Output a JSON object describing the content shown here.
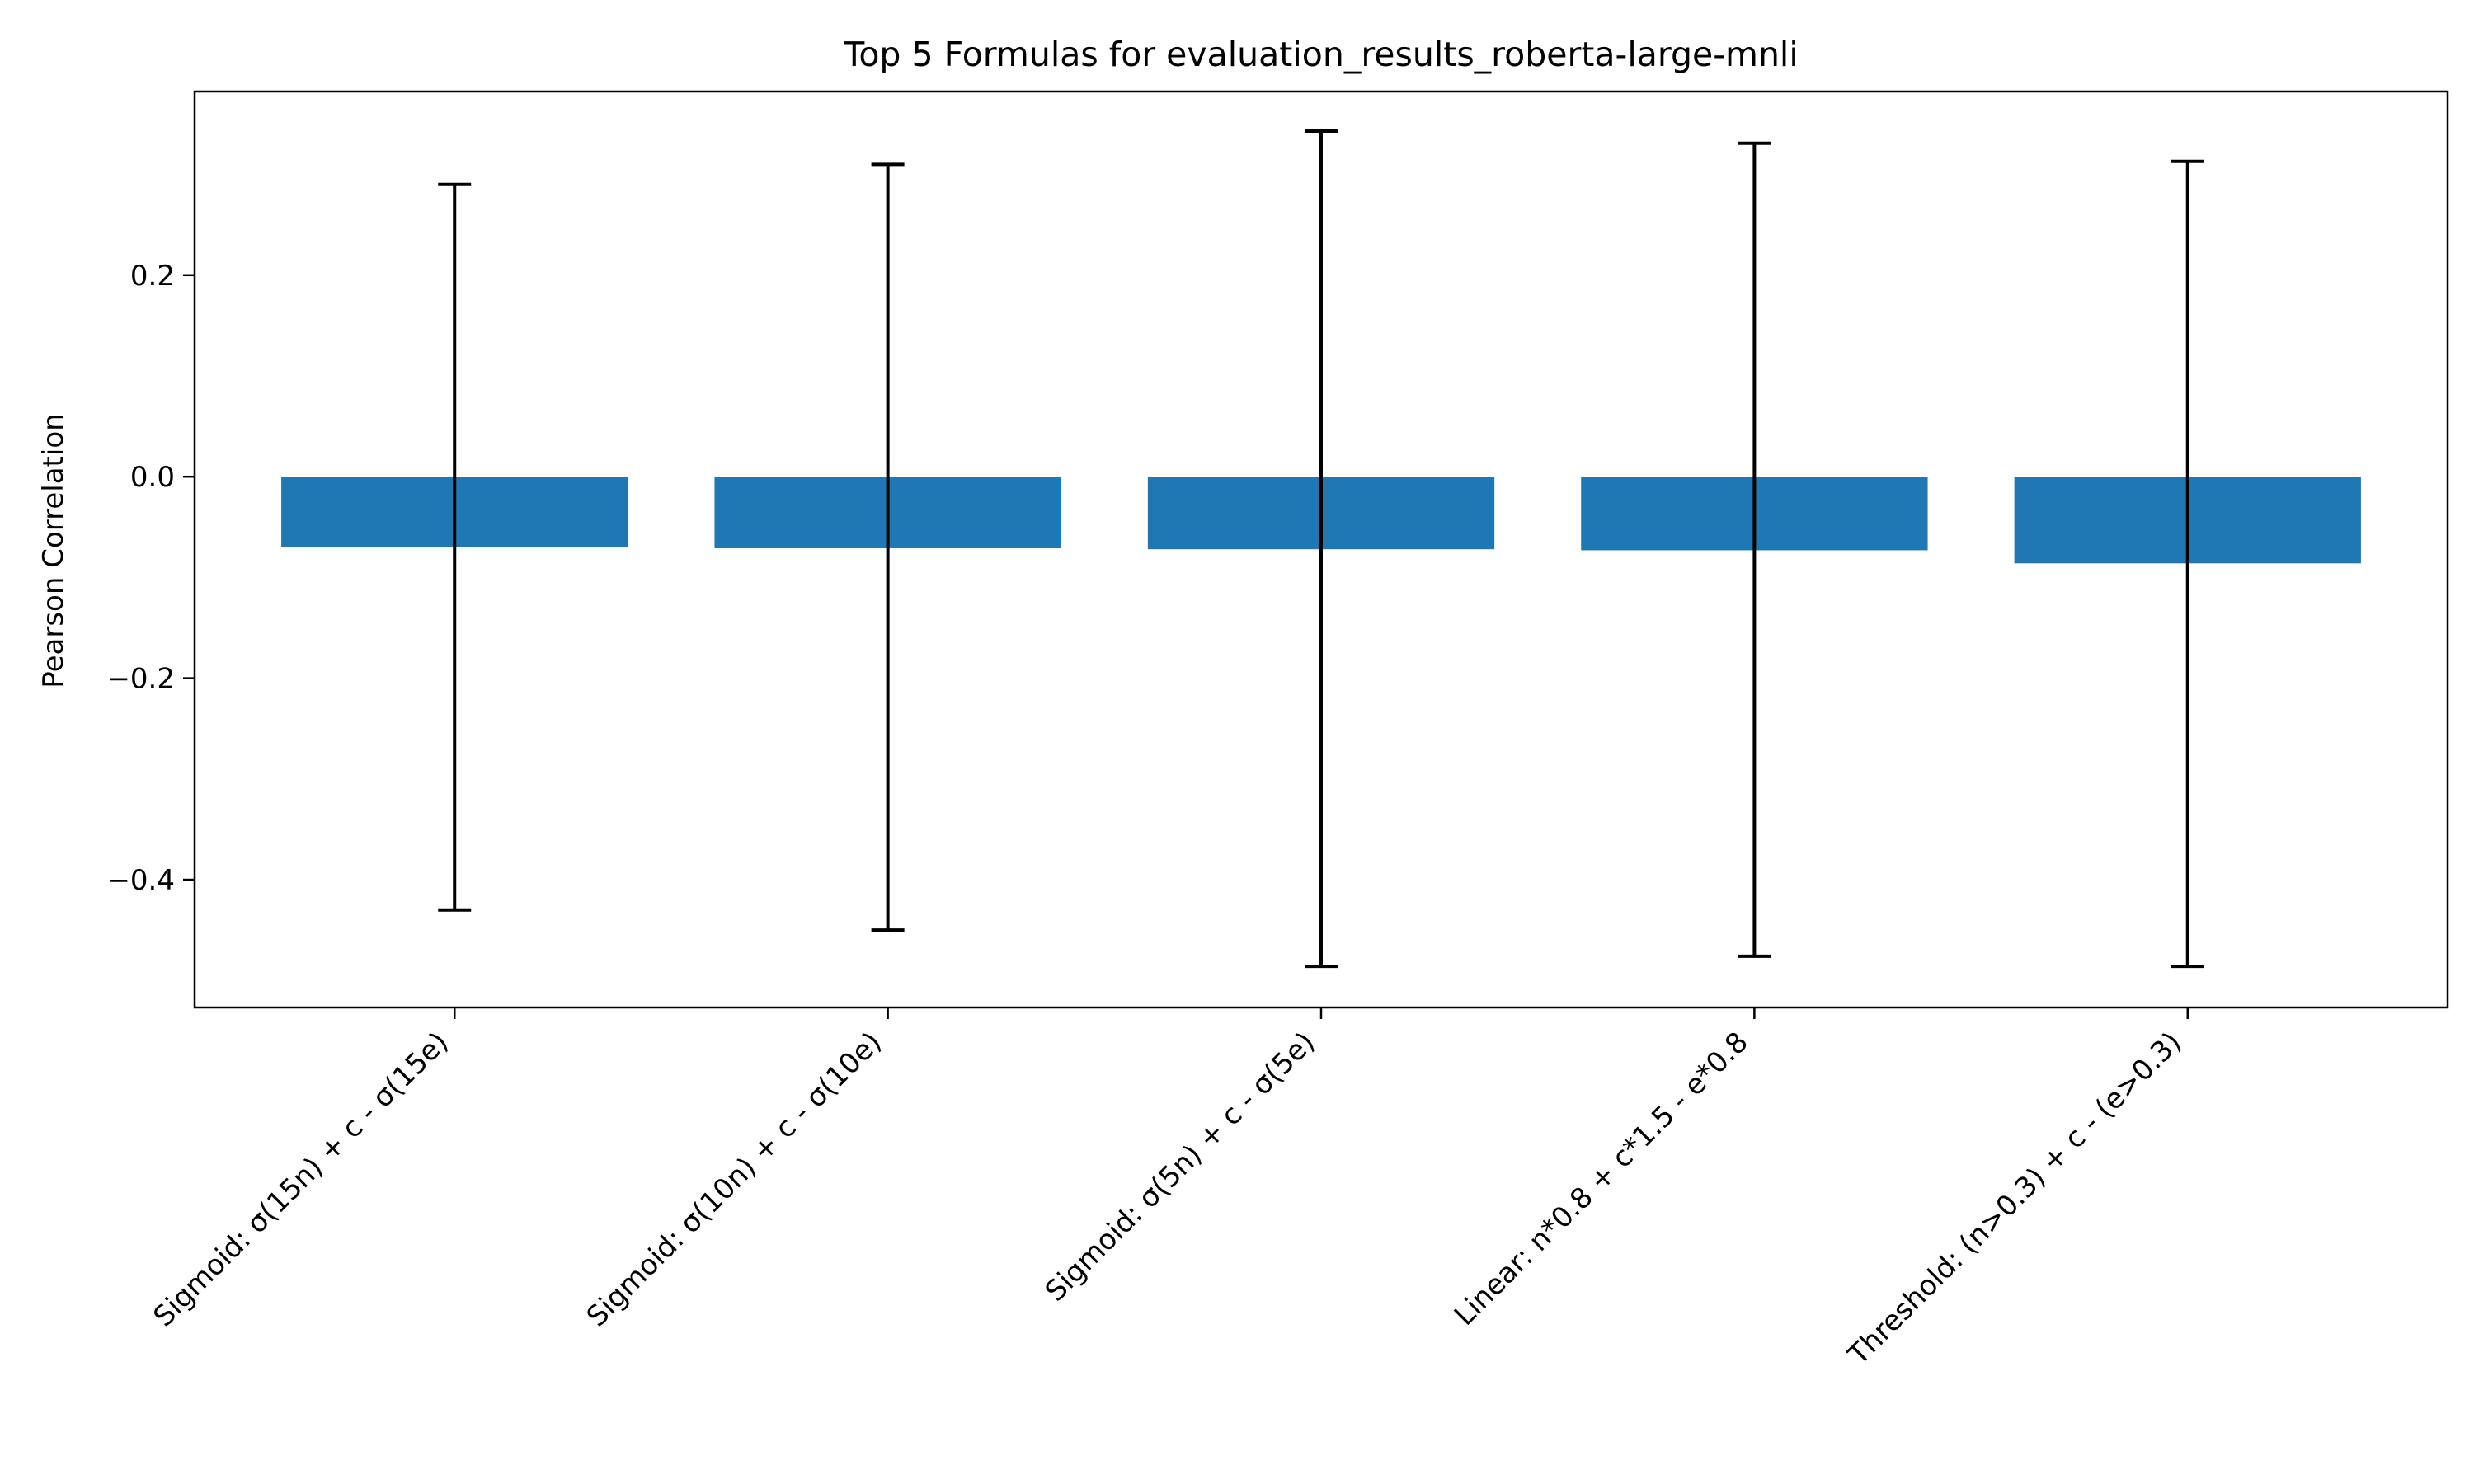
{
  "chart_data": {
    "type": "bar",
    "title": "Top 5 Formulas for evaluation_results_roberta-large-mnli",
    "xlabel": "",
    "ylabel": "Pearson Correlation",
    "ylim": [
      -0.5268,
      0.3823
    ],
    "yticks": [
      {
        "value": 0.2,
        "label": "0.2"
      },
      {
        "value": 0.0,
        "label": "0.0"
      },
      {
        "value": -0.2,
        "label": "−0.2"
      },
      {
        "value": -0.4,
        "label": "−0.4"
      }
    ],
    "categories": [
      "Sigmoid: σ(15n) + c - σ(15e)",
      "Sigmoid: σ(10n) + c - σ(10e)",
      "Sigmoid: σ(5n) + c - σ(5e)",
      "Linear: n*0.8 + c*1.5 - e*0.8",
      "Threshold: (n>0.3) + c - (e>0.3)"
    ],
    "values": [
      -0.07,
      -0.071,
      -0.072,
      -0.073,
      -0.086
    ],
    "error_low": [
      -0.43,
      -0.45,
      -0.486,
      -0.476,
      -0.486
    ],
    "error_high": [
      0.29,
      0.31,
      0.343,
      0.331,
      0.313
    ],
    "bar_color": "#1f77b4",
    "error_color": "#000000",
    "grid": false,
    "legend": null
  }
}
